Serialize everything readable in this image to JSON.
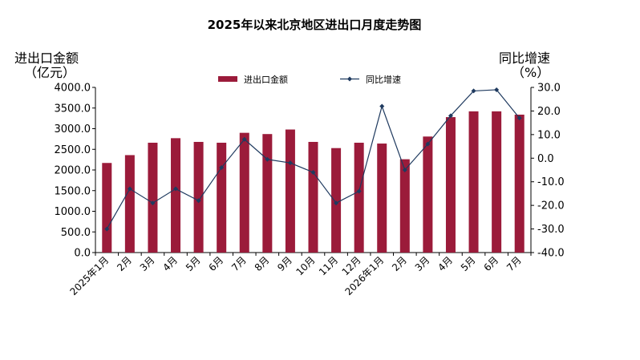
{
  "chart_data": {
    "type": "bar+line",
    "title": "2025年以来北京地区进出口月度走势图",
    "left_axis": {
      "label_line1": "进出口金额",
      "label_line2": "（亿元）",
      "ylim": [
        0,
        4000
      ],
      "step": 500,
      "tick_decimals": 1
    },
    "right_axis": {
      "label_line1": "同比增速",
      "label_line2": "（%）",
      "ylim": [
        -40,
        30
      ],
      "step": 10,
      "tick_decimals": 1
    },
    "categories": [
      "2025年1月",
      "2月",
      "3月",
      "4月",
      "5月",
      "6月",
      "7月",
      "8月",
      "9月",
      "10月",
      "11月",
      "12月",
      "2026年1月",
      "2月",
      "3月",
      "4月",
      "5月",
      "6月",
      "7月"
    ],
    "series": [
      {
        "name": "进出口金额",
        "type": "bar",
        "axis": "left",
        "color": "#9b1b3a",
        "values": [
          2170,
          2360,
          2660,
          2770,
          2680,
          2660,
          2900,
          2870,
          2980,
          2680,
          2530,
          2660,
          2640,
          2260,
          2810,
          3280,
          3420,
          3420,
          3340
        ]
      },
      {
        "name": "同比增速",
        "type": "line",
        "axis": "right",
        "color": "#1f3a5f",
        "values": [
          -30,
          -13,
          -19,
          -13,
          -18,
          -4,
          8,
          -0.5,
          -2,
          -6,
          -19,
          -14,
          22,
          -5,
          6,
          18,
          28.5,
          29,
          17
        ]
      }
    ],
    "legend_position": "top-center",
    "grid": false
  }
}
